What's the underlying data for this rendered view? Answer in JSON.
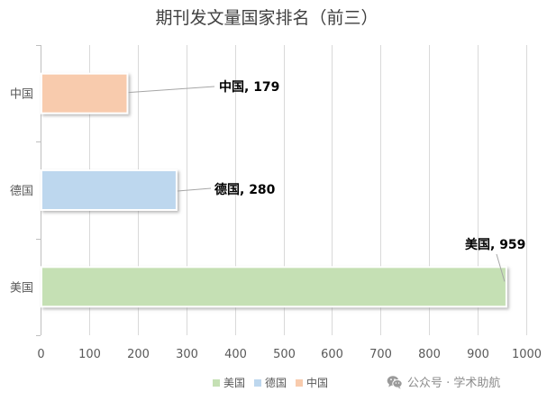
{
  "chart_data": {
    "type": "bar",
    "orientation": "horizontal",
    "title": "期刊发文量国家排名（前三）",
    "xlabel": "",
    "ylabel": "",
    "categories": [
      "中国",
      "德国",
      "美国"
    ],
    "values": [
      179,
      280,
      959
    ],
    "data_labels": [
      "中国, 179",
      "德国, 280",
      "美国, 959"
    ],
    "colors": [
      "#F8CBAD",
      "#BDD7EE",
      "#C5E0B4"
    ],
    "xlim": [
      0,
      1000
    ],
    "xticks": [
      0,
      100,
      200,
      300,
      400,
      500,
      600,
      700,
      800,
      900,
      1000
    ],
    "grid": true,
    "legend": {
      "position": "bottom",
      "entries": [
        {
          "label": "美国",
          "color": "#C5E0B4"
        },
        {
          "label": "德国",
          "color": "#BDD7EE"
        },
        {
          "label": "中国",
          "color": "#F8CBAD"
        }
      ]
    }
  },
  "watermark": {
    "icon": "wechat-icon",
    "text": "公众号 · 学术助航"
  }
}
